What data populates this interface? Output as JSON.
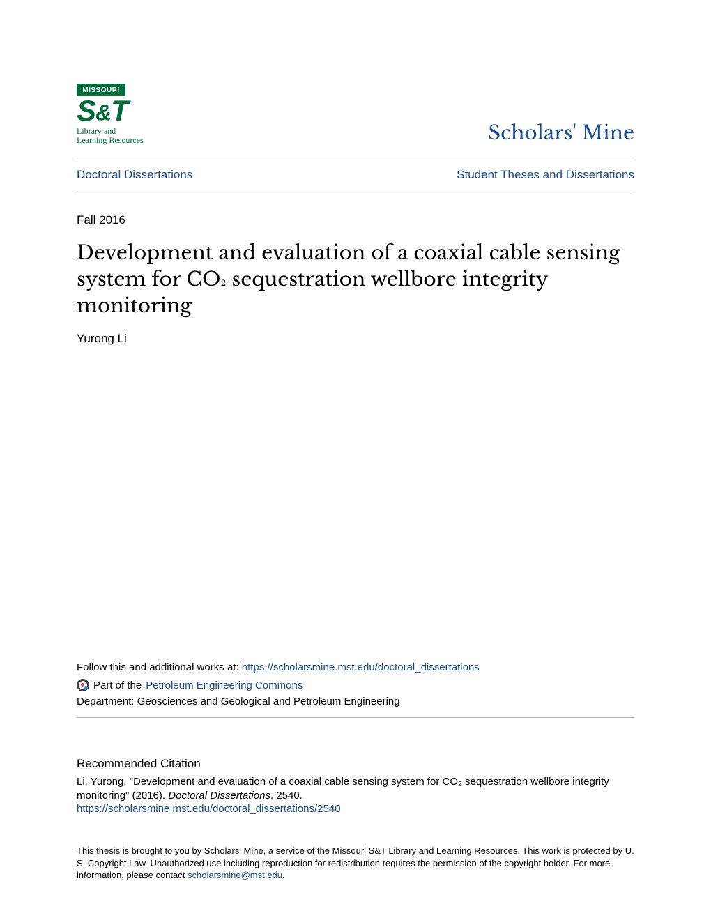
{
  "colors": {
    "link": "#1a4b8c",
    "brand_green": "#006c3a",
    "rule": "#b0b0b0",
    "text": "#000000",
    "background": "#ffffff"
  },
  "header": {
    "logo_top": "MISSOURI",
    "logo_main": "S&T",
    "logo_sub_line1": "Library and",
    "logo_sub_line2": "Learning Resources",
    "site_title": "Scholars' Mine"
  },
  "nav": {
    "left": "Doctoral Dissertations",
    "right": "Student Theses and Dissertations"
  },
  "date": "Fall 2016",
  "title": "Development and evaluation of a coaxial cable sensing system for CO₂ sequestration wellbore integrity monitoring",
  "author": "Yurong Li",
  "follow": {
    "prefix": "Follow this and additional works at:",
    "link_text": "https://scholarsmine.mst.edu/doctoral_dissertations",
    "part_prefix": "Part of the",
    "part_link": "Petroleum Engineering Commons",
    "dept_label": "Department: Geosciences and Geological and Petroleum Engineering"
  },
  "citation": {
    "heading": "Recommended Citation",
    "text_pre": "Li, Yurong, \"Development and evaluation of a coaxial cable sensing system for CO₂ sequestration wellbore integrity monitoring\" (2016). ",
    "series_ital": "Doctoral Dissertations",
    "text_post": ". 2540.",
    "link": "https://scholarsmine.mst.edu/doctoral_dissertations/2540"
  },
  "footer": {
    "text_pre": "This thesis is brought to you by Scholars' Mine, a service of the Missouri S&T Library and Learning Resources. This work is protected by U. S. Copyright Law. Unauthorized use including reproduction for redistribution requires the permission of the copyright holder. For more information, please contact ",
    "email": "scholarsmine@mst.edu",
    "text_post": "."
  }
}
